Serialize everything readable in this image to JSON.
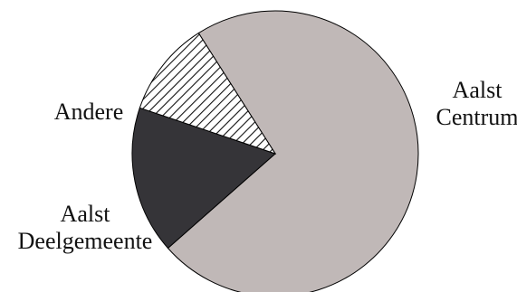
{
  "chart_data": {
    "type": "pie",
    "title": "",
    "slices": [
      {
        "label_lines": [
          "Aalst",
          "Centrum"
        ],
        "value": 72.5,
        "color": "#c0b8b7",
        "fill": "solid"
      },
      {
        "label_lines": [
          "Aalst",
          "Deelgemeente"
        ],
        "value": 16.7,
        "color": "#353438",
        "fill": "solid"
      },
      {
        "label_lines": [
          "Andere"
        ],
        "value": 10.8,
        "color": "#000000",
        "fill": "diagonal-hatch"
      }
    ],
    "start_angle_deg": 237.6,
    "direction": "clockwise"
  }
}
